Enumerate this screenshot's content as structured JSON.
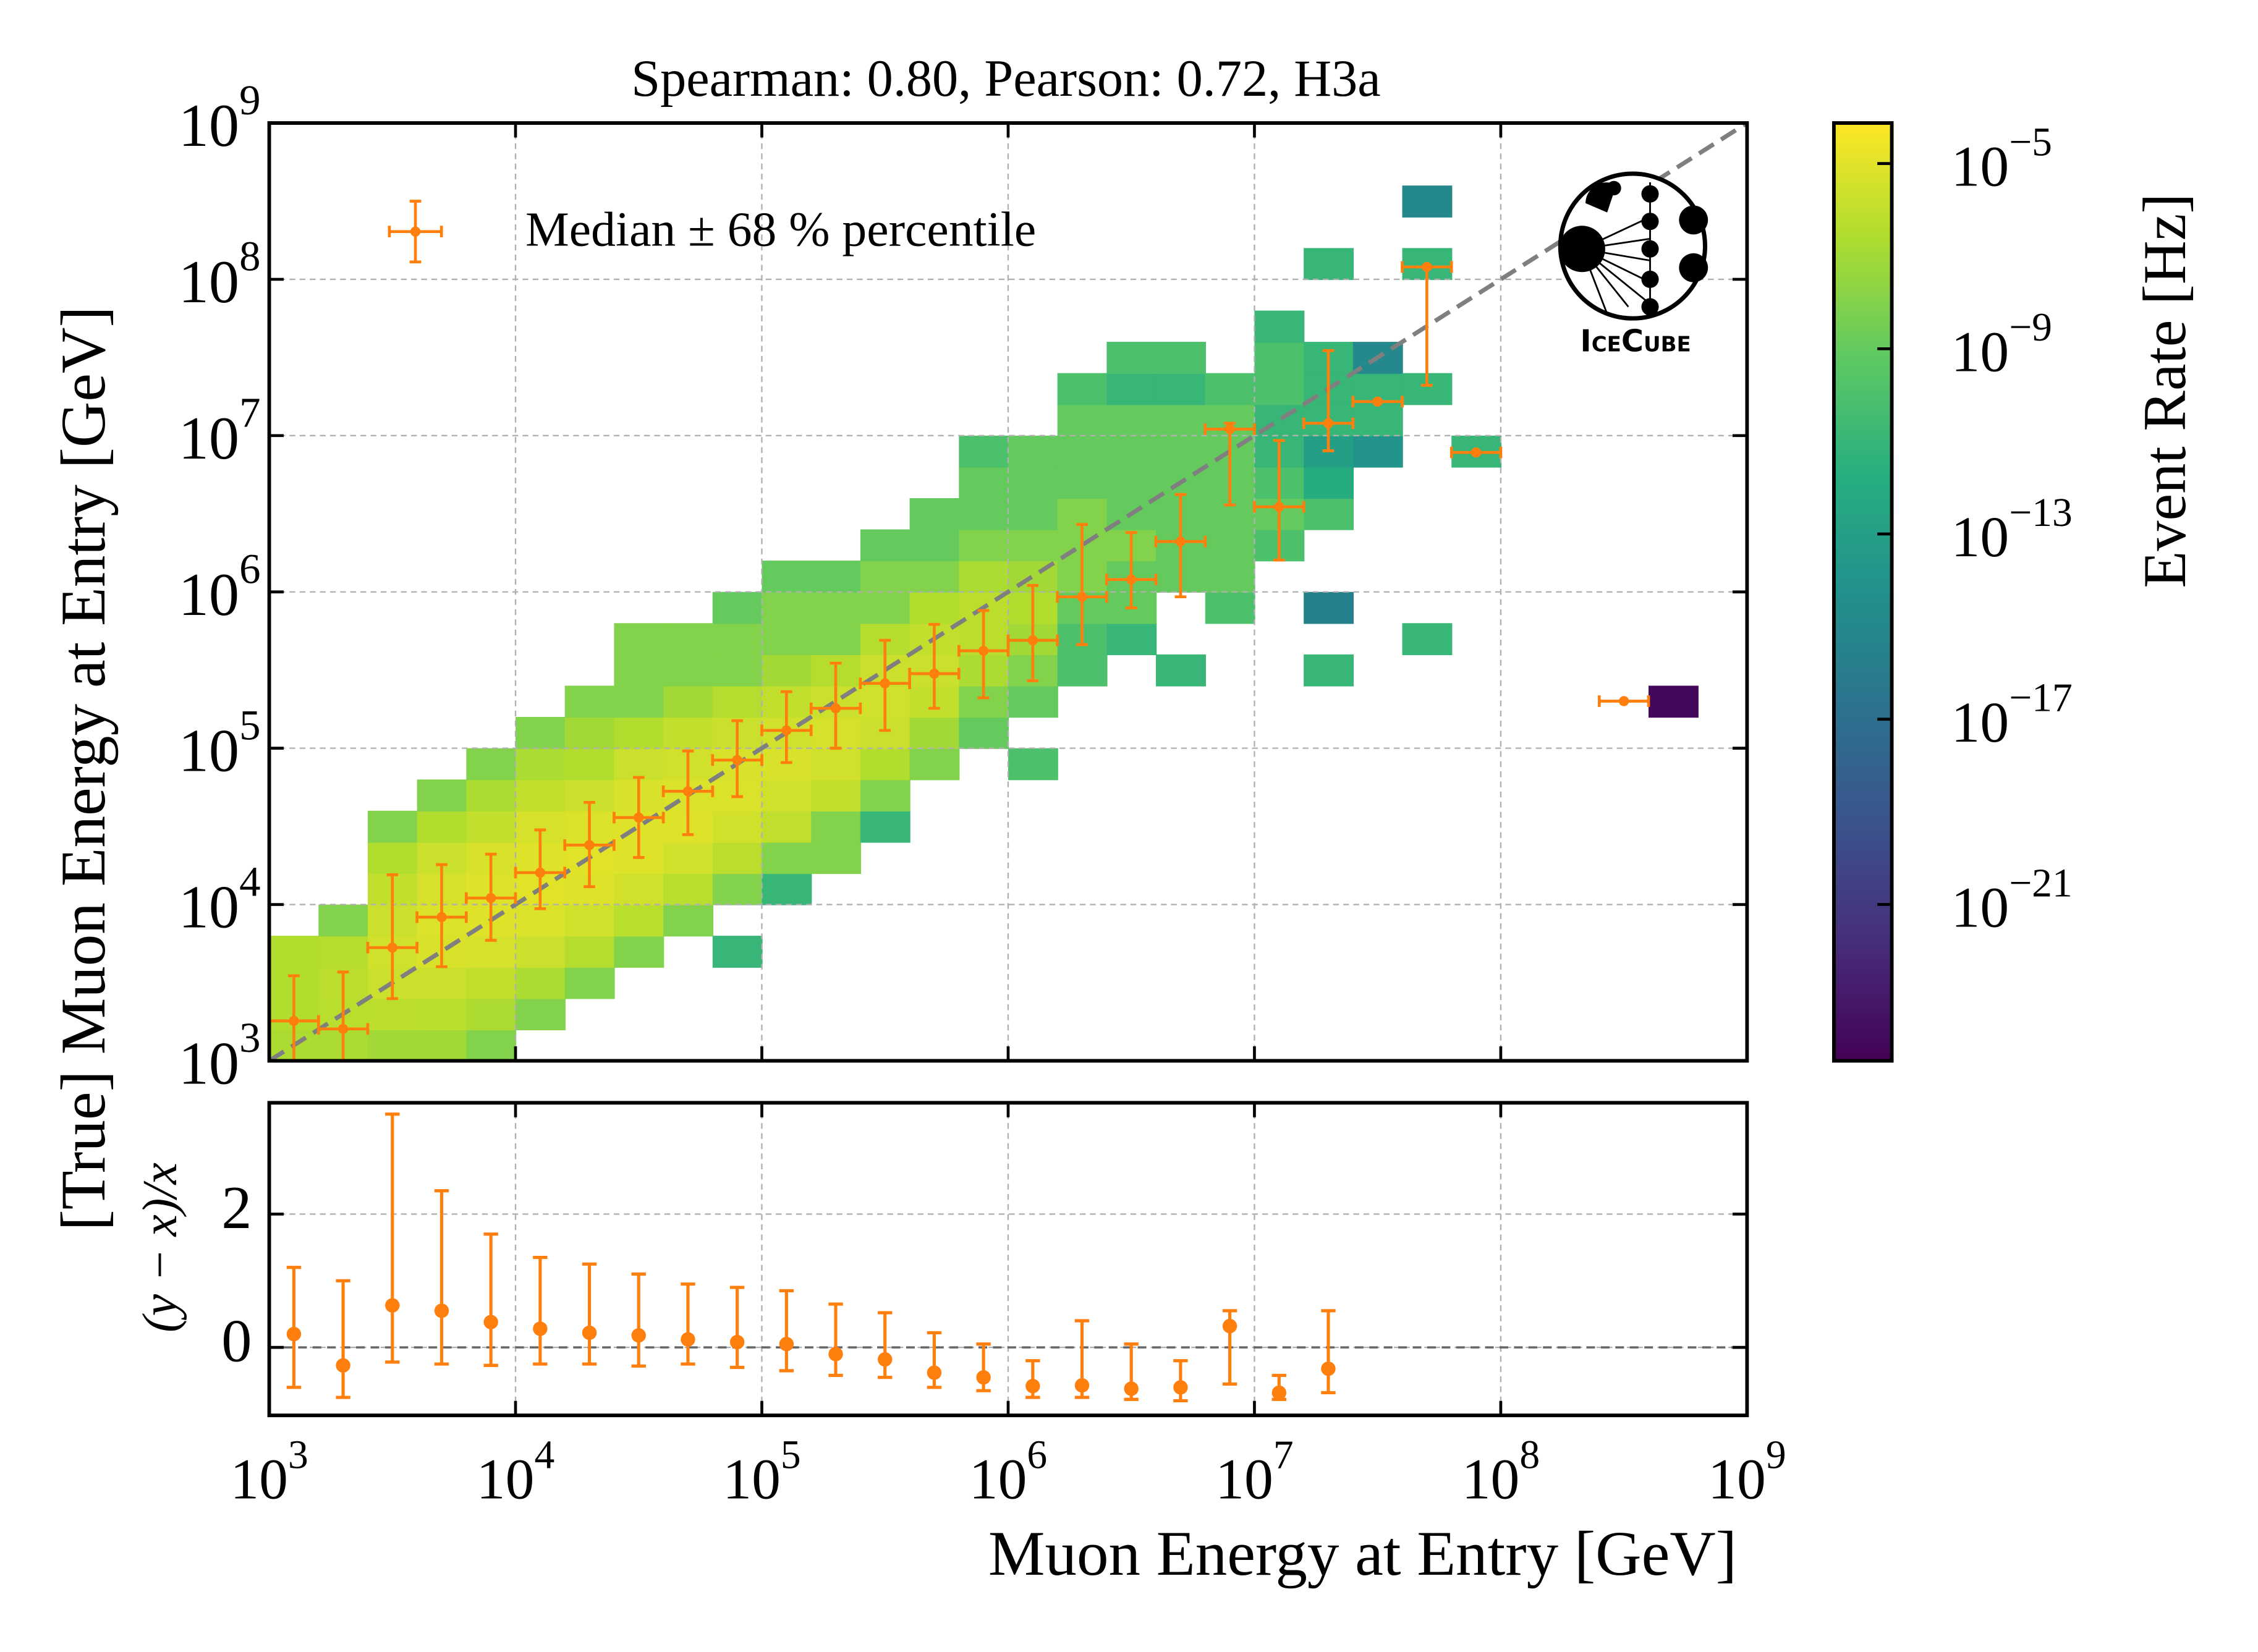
{
  "chart_data": [
    {
      "type": "heatmap",
      "title": "Spearman: 0.80, Pearson: 0.72, H3a",
      "y_label": "[True] Muon Energy at Entry [GeV]",
      "log_x": true,
      "log_y": true,
      "xlim": [
        1000,
        1000000000
      ],
      "ylim": [
        1000,
        1000000000
      ],
      "xticks": [
        1000,
        10000,
        100000,
        1000000,
        10000000,
        100000000,
        1000000000
      ],
      "yticks": [
        {
          "value": 1000,
          "label": "10",
          "exponent": "3"
        },
        {
          "value": 10000,
          "label": "10",
          "exponent": "4"
        },
        {
          "value": 100000,
          "label": "10",
          "exponent": "5"
        },
        {
          "value": 1000000,
          "label": "10",
          "exponent": "6"
        },
        {
          "value": 10000000,
          "label": "10",
          "exponent": "7"
        },
        {
          "value": 100000000,
          "label": "10",
          "exponent": "8"
        },
        {
          "value": 1000000000,
          "label": "10",
          "exponent": "9"
        }
      ],
      "grid": true,
      "xbins": [
        1000.0,
        1585.0,
        2512.0,
        3981.0,
        6310.0,
        10000.0,
        15850.0,
        25120.0,
        39810.0,
        63100.0,
        100000.0,
        158500.0,
        251200.0,
        398100.0,
        631000.0,
        1000000.0,
        1585000.0,
        2512000.0,
        3981000.0,
        6310000.0,
        10000000.0,
        15850000.0,
        25120000.0,
        39810000.0,
        63100000.0,
        100000000.0,
        158500000.0,
        251200000.0,
        398100000.0,
        631000000.0,
        1000000000.0
      ],
      "ybins": [
        1000.0,
        1585.0,
        2512.0,
        3981.0,
        6310.0,
        10000.0,
        15850.0,
        25120.0,
        39810.0,
        63100.0,
        100000.0,
        158500.0,
        251200.0,
        398100.0,
        631000.0,
        1000000.0,
        1585000.0,
        2512000.0,
        3981000.0,
        6310000.0,
        10000000.0,
        15850000.0,
        25120000.0,
        39810000.0,
        63100000.0,
        100000000.0,
        158500000.0,
        251200000.0,
        398100000.0,
        631000000.0,
        1000000000.0
      ],
      "z": [
        [
          2e-07,
          3e-07,
          3e-07,
          3e-07
        ],
        [
          2e-07,
          5e-07,
          6e-07,
          4e-07,
          1e-08
        ],
        [
          1e-07,
          6e-07,
          2e-06,
          3e-06,
          2e-06,
          1e-06,
          3e-07,
          1e-08
        ],
        [
          1e-07,
          5e-07,
          2e-06,
          5e-06,
          6e-06,
          4e-06,
          2e-06,
          3e-07,
          1e-08
        ],
        [
          1e-08,
          2e-07,
          1e-06,
          4e-06,
          8e-06,
          8e-06,
          5e-06,
          1e-06,
          2e-07,
          1e-08
        ],
        [
          null,
          1e-08,
          2e-07,
          2e-06,
          6e-06,
          1e-05,
          8e-06,
          4e-06,
          1e-06,
          2e-07,
          1e-08
        ],
        [
          null,
          null,
          1e-08,
          4e-07,
          3e-06,
          8e-06,
          1e-05,
          6e-06,
          2e-06,
          3e-07,
          1e-07,
          1e-08
        ],
        [
          null,
          null,
          null,
          1e-08,
          5e-07,
          3e-06,
          8e-06,
          8e-06,
          5e-06,
          2e-06,
          3e-07,
          1e-08,
          1e-08,
          1e-08
        ],
        [
          null,
          null,
          null,
          null,
          1e-08,
          5e-07,
          3e-06,
          8e-06,
          6e-06,
          3e-06,
          1e-06,
          1e-07,
          1e-08,
          1e-08
        ],
        [
          null,
          null,
          null,
          1e-11,
          null,
          1e-08,
          6e-07,
          3e-06,
          6e-06,
          5e-06,
          2e-06,
          4e-07,
          1e-08,
          1e-08,
          1e-09
        ],
        [
          null,
          null,
          null,
          null,
          null,
          1e-11,
          1e-08,
          8e-07,
          3e-06,
          5e-06,
          3e-06,
          1e-06,
          1e-07,
          1e-08,
          1e-08,
          1e-09
        ],
        [
          null,
          null,
          null,
          null,
          null,
          null,
          1e-08,
          1e-08,
          1e-06,
          3e-06,
          4e-06,
          2e-06,
          4e-07,
          1e-08,
          1e-08,
          1e-09
        ],
        [
          null,
          null,
          null,
          null,
          null,
          null,
          null,
          1e-11,
          1e-08,
          3e-07,
          2e-06,
          3e-06,
          2e-06,
          4e-07,
          1e-08,
          1e-08,
          1e-09
        ],
        [
          null,
          null,
          null,
          null,
          null,
          null,
          null,
          null,
          null,
          1e-08,
          1e-07,
          1e-06,
          2e-06,
          1e-06,
          3e-07,
          1e-08,
          1e-09,
          1e-09
        ],
        [
          null,
          null,
          null,
          null,
          null,
          null,
          null,
          null,
          null,
          null,
          1e-09,
          1e-08,
          2e-07,
          6e-07,
          6e-07,
          2e-07,
          1e-08,
          1e-09,
          1e-09,
          1e-10
        ],
        [
          null,
          null,
          null,
          null,
          null,
          null,
          null,
          null,
          null,
          1e-10,
          null,
          1e-09,
          1e-08,
          1e-07,
          3e-07,
          1e-07,
          1e-08,
          1e-09,
          1e-09,
          1e-09
        ],
        [
          null,
          null,
          null,
          null,
          null,
          null,
          null,
          null,
          null,
          null,
          null,
          null,
          1e-10,
          1e-10,
          1e-09,
          1e-08,
          1e-08,
          1e-08,
          1e-09,
          1e-09,
          1e-09,
          1e-10
        ],
        [
          null,
          null,
          null,
          null,
          null,
          null,
          null,
          null,
          null,
          null,
          null,
          null,
          null,
          1e-11,
          1e-09,
          1e-09,
          1e-08,
          1e-09,
          1e-09,
          1e-09,
          1e-09,
          1e-11,
          1e-10
        ],
        [
          null,
          null,
          null,
          null,
          null,
          null,
          null,
          null,
          null,
          null,
          null,
          null,
          1e-11,
          null,
          null,
          1e-09,
          1e-09,
          1e-09,
          1e-09,
          1e-09,
          1e-09,
          1e-11,
          1e-10
        ],
        [
          null,
          null,
          null,
          null,
          null,
          null,
          null,
          null,
          null,
          null,
          null,
          null,
          null,
          null,
          1e-10,
          1e-09,
          1e-09,
          1e-09,
          1e-09,
          1e-09,
          1e-09,
          1e-10
        ],
        [
          null,
          null,
          null,
          null,
          null,
          null,
          null,
          null,
          null,
          null,
          null,
          null,
          null,
          null,
          null,
          null,
          1e-10,
          1e-09,
          1e-10,
          1e-11,
          1e-11,
          1e-10,
          1e-10,
          1e-11
        ],
        [
          null,
          null,
          null,
          null,
          null,
          null,
          null,
          null,
          null,
          null,
          null,
          null,
          1e-11,
          null,
          3e-16,
          null,
          null,
          1e-10,
          1e-12,
          1e-13,
          1e-11,
          1e-11,
          1e-11,
          null,
          null,
          1e-11
        ],
        [
          null,
          null,
          null,
          null,
          null,
          null,
          null,
          null,
          null,
          null,
          null,
          null,
          null,
          null,
          null,
          null,
          null,
          null,
          null,
          1e-14,
          1e-11,
          1e-11,
          1e-15
        ],
        [
          null,
          null,
          null,
          null,
          null,
          null,
          null,
          null,
          null,
          null,
          null,
          null,
          null,
          1e-11,
          null,
          null,
          null,
          null,
          null,
          null,
          null,
          1e-11,
          null,
          null,
          null,
          1e-11,
          null,
          1e-15
        ],
        [
          null,
          null,
          null,
          null,
          null,
          null,
          null,
          null,
          null,
          null,
          null,
          null,
          null,
          null,
          null,
          null,
          null,
          null,
          null,
          1e-11
        ],
        [],
        [],
        [],
        [
          null,
          null,
          null,
          null,
          null,
          null,
          null,
          null,
          null,
          null,
          null,
          1e-24
        ],
        []
      ],
      "colormap": "viridis",
      "clim": [
        4.2e-25,
        7.5e-05
      ],
      "colorbar_label": "Event Rate [Hz]",
      "cticks": [
        {
          "value": 1e-05,
          "label": "10",
          "exponent": "−5"
        },
        {
          "value": 1e-09,
          "label": "10",
          "exponent": "−9"
        },
        {
          "value": 1e-13,
          "label": "10",
          "exponent": "−13"
        },
        {
          "value": 1e-17,
          "label": "10",
          "exponent": "−17"
        },
        {
          "value": 1e-21,
          "label": "10",
          "exponent": "−21"
        }
      ],
      "series": [
        {
          "name": "Median ± 68 % percentile",
          "color": "#ff7f0e",
          "x": [
            1259.0,
            1995.0,
            3162.0,
            5012.0,
            7943.0,
            12590.0,
            19950.0,
            31620.0,
            50120.0,
            79430.0,
            125900.0,
            199500.0,
            316200.0,
            501200.0,
            794300.0,
            1259000.0,
            1995000.0,
            3162000.0,
            5012000.0,
            7943000.0,
            12590000.0,
            19950000.0,
            31620000.0,
            50120000.0,
            79430000.0,
            316200000.0
          ],
          "x_low": [
            1000.0,
            1585.0,
            2512.0,
            3981.0,
            6310.0,
            10000.0,
            15850.0,
            25120.0,
            39810.0,
            63100.0,
            100000.0,
            158500.0,
            251200.0,
            398100.0,
            631000.0,
            1000000.0,
            1585000.0,
            2512000.0,
            3981000.0,
            6310000.0,
            10000000.0,
            15850000.0,
            25120000.0,
            39810000.0,
            63100000.0,
            251200000.0
          ],
          "x_high": [
            1585.0,
            2512.0,
            3981.0,
            6310.0,
            10000.0,
            15850.0,
            25120.0,
            39810.0,
            63100.0,
            100000.0,
            158500.0,
            251200.0,
            398100.0,
            631000.0,
            1000000.0,
            1585000.0,
            2512000.0,
            3981000.0,
            6310000.0,
            10000000.0,
            15850000.0,
            25120000.0,
            39810000.0,
            63100000.0,
            100000000.0,
            398100000.0
          ],
          "values": [
            1800.0,
            1600.0,
            5300.0,
            8300.0,
            11000.0,
            16000.0,
            24000.0,
            36000.0,
            53000.0,
            84000.0,
            130000.0,
            180000.0,
            260000.0,
            300000.0,
            420000.0,
            490000.0,
            930000.0,
            1200000.0,
            2100000.0,
            11000000.0,
            3500000.0,
            12000000.0,
            16500000.0,
            120000000.0,
            7800000.0,
            200000.0
          ],
          "y_low": [
            1000.0,
            1000.0,
            2500.0,
            4000.0,
            5900.0,
            9400.0,
            13000.0,
            20000.0,
            28000.0,
            49000.0,
            81000.0,
            100000.0,
            130000.0,
            180000.0,
            210000.0,
            270000.0,
            460000.0,
            790000.0,
            930000.0,
            3600000.0,
            1600000.0,
            8000000.0,
            16500000.0,
            21000000.0,
            7800000.0,
            200000.0
          ],
          "y_high": [
            3500.0,
            3700.0,
            15500.0,
            18000.0,
            21000.0,
            30000.0,
            45000.0,
            65000.0,
            96000.0,
            150000.0,
            230000.0,
            350000.0,
            490000.0,
            620000.0,
            760000.0,
            1100000.0,
            2700000.0,
            2400000.0,
            4200000.0,
            12000000.0,
            9300000.0,
            35000000.0,
            16500000.0,
            120000000.0,
            7800000.0,
            200000.0
          ]
        }
      ],
      "legend": "upper left",
      "reference_line": {
        "x": [
          1000,
          1000000000
        ],
        "values": [
          1000,
          1000000000
        ],
        "color": "#7f7f7f"
      },
      "logo_text": "IceCube"
    },
    {
      "type": "errorbar",
      "x_label": "Muon Energy at Entry [GeV]",
      "y_label": "(y − x)/x",
      "log_x": true,
      "xlim": [
        1000,
        1000000000
      ],
      "ylim": [
        -1.02,
        3.67
      ],
      "xticks": [
        {
          "value": 1000,
          "label": "10",
          "exponent": "3"
        },
        {
          "value": 10000,
          "label": "10",
          "exponent": "4"
        },
        {
          "value": 100000,
          "label": "10",
          "exponent": "5"
        },
        {
          "value": 1000000,
          "label": "10",
          "exponent": "6"
        },
        {
          "value": 10000000,
          "label": "10",
          "exponent": "7"
        },
        {
          "value": 100000000,
          "label": "10",
          "exponent": "8"
        },
        {
          "value": 1000000000,
          "label": "10",
          "exponent": "9"
        }
      ],
      "yticks": [
        0,
        2
      ],
      "grid": true,
      "series": [
        {
          "color": "#ff7f0e",
          "x": [
            1259.0,
            1995.0,
            3162.0,
            5012.0,
            7943.0,
            12590.0,
            19950.0,
            31620.0,
            50120.0,
            79430.0,
            125900.0,
            199500.0,
            316200.0,
            501200.0,
            794300.0,
            1259000.0,
            1995000.0,
            3162000.0,
            5012000.0,
            7943000.0,
            12590000.0,
            19950000.0
          ],
          "values": [
            0.2,
            -0.27,
            0.63,
            0.55,
            0.38,
            0.28,
            0.22,
            0.18,
            0.12,
            0.08,
            0.05,
            -0.1,
            -0.18,
            -0.38,
            -0.45,
            -0.58,
            -0.57,
            -0.62,
            -0.6,
            0.32,
            -0.68,
            -0.32
          ],
          "y_low": [
            -0.6,
            -0.75,
            -0.22,
            -0.25,
            -0.27,
            -0.25,
            -0.25,
            -0.28,
            -0.25,
            -0.3,
            -0.35,
            -0.42,
            -0.45,
            -0.6,
            -0.65,
            -0.75,
            -0.75,
            -0.78,
            -0.8,
            -0.55,
            -0.78,
            -0.68
          ],
          "y_high": [
            1.2,
            1.0,
            3.5,
            2.35,
            1.7,
            1.35,
            1.25,
            1.1,
            0.95,
            0.9,
            0.85,
            0.65,
            0.52,
            0.22,
            0.05,
            -0.2,
            0.4,
            0.05,
            -0.2,
            0.55,
            -0.42,
            0.55
          ]
        }
      ],
      "reference_line": {
        "y": 0,
        "color": "#666666"
      }
    }
  ]
}
